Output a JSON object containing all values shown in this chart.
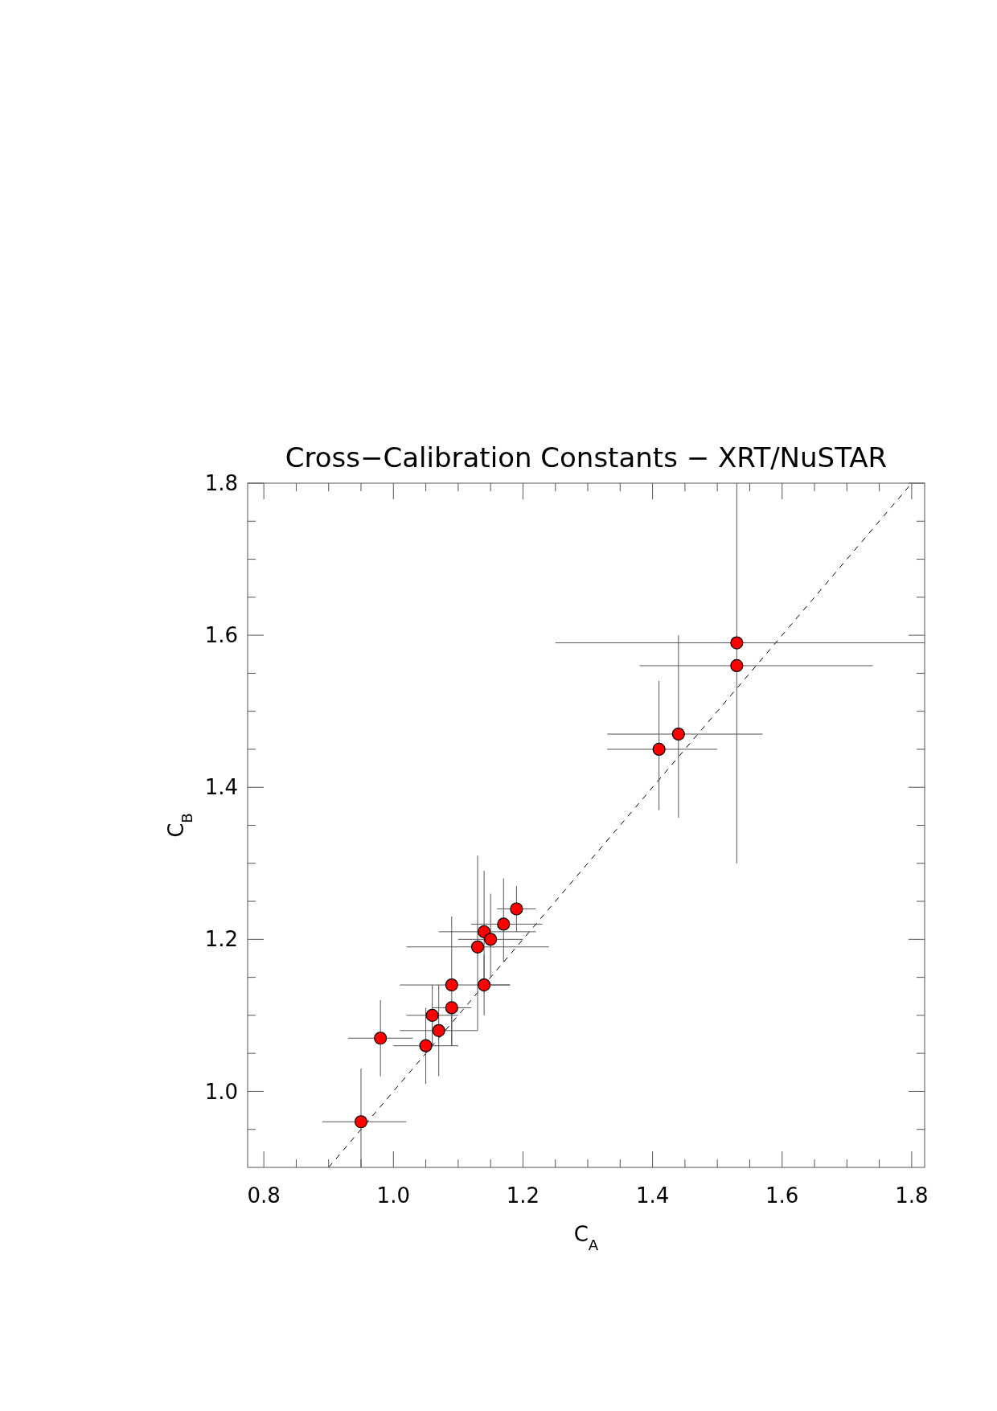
{
  "chart_data": {
    "type": "scatter",
    "title": "Cross−Calibration Constants − XRT/NuSTAR",
    "xlabel": "C$_{A}$",
    "ylabel": "C$_{B}$",
    "xlim": [
      0.775,
      1.82
    ],
    "ylim": [
      0.9,
      1.8
    ],
    "xticks": [
      {
        "value": 0.8,
        "label": "0.8"
      },
      {
        "value": 0.85,
        "label": null
      },
      {
        "value": 0.9,
        "label": null
      },
      {
        "value": 0.95,
        "label": null
      },
      {
        "value": 1,
        "label": "1.0"
      },
      {
        "value": 1.05,
        "label": null
      },
      {
        "value": 1.1,
        "label": null
      },
      {
        "value": 1.15,
        "label": null
      },
      {
        "value": 1.2,
        "label": "1.2"
      },
      {
        "value": 1.25,
        "label": null
      },
      {
        "value": 1.3,
        "label": null
      },
      {
        "value": 1.35,
        "label": null
      },
      {
        "value": 1.4,
        "label": "1.4"
      },
      {
        "value": 1.45,
        "label": null
      },
      {
        "value": 1.5,
        "label": null
      },
      {
        "value": 1.55,
        "label": null
      },
      {
        "value": 1.6,
        "label": "1.6"
      },
      {
        "value": 1.65,
        "label": null
      },
      {
        "value": 1.7,
        "label": null
      },
      {
        "value": 1.75,
        "label": null
      },
      {
        "value": 1.8,
        "label": "1.8"
      }
    ],
    "yticks": [
      {
        "value": 0.95,
        "label": null
      },
      {
        "value": 1,
        "label": "1.0"
      },
      {
        "value": 1.05,
        "label": null
      },
      {
        "value": 1.1,
        "label": null
      },
      {
        "value": 1.15,
        "label": null
      },
      {
        "value": 1.2,
        "label": "1.2"
      },
      {
        "value": 1.25,
        "label": null
      },
      {
        "value": 1.3,
        "label": null
      },
      {
        "value": 1.35,
        "label": null
      },
      {
        "value": 1.4,
        "label": "1.4"
      },
      {
        "value": 1.45,
        "label": null
      },
      {
        "value": 1.5,
        "label": null
      },
      {
        "value": 1.55,
        "label": null
      },
      {
        "value": 1.6,
        "label": "1.6"
      },
      {
        "value": 1.65,
        "label": null
      },
      {
        "value": 1.7,
        "label": null
      },
      {
        "value": 1.75,
        "label": null
      },
      {
        "value": 1.8,
        "label": "1.8"
      }
    ],
    "grid": false,
    "series": [
      {
        "type": "line",
        "color": "#000000",
        "line_style": "dashed",
        "x": [
          0.9,
          1.8
        ],
        "values": [
          0.9,
          1.8
        ]
      },
      {
        "type": "scatter",
        "color": "#ff0000",
        "marker": "circle",
        "x": [
          0.95,
          0.98,
          1.05,
          1.07,
          1.06,
          1.09,
          1.09,
          1.14,
          1.13,
          1.14,
          1.15,
          1.17,
          1.19,
          1.53,
          1.53,
          1.44,
          1.41
        ],
        "values": [
          0.96,
          1.07,
          1.06,
          1.08,
          1.1,
          1.11,
          1.14,
          1.14,
          1.19,
          1.21,
          1.2,
          1.22,
          1.24,
          1.59,
          1.56,
          1.47,
          1.45
        ],
        "xerrors": [
          [
            0.89,
            1.02
          ],
          [
            0.93,
            1.03
          ],
          [
            1,
            1.1
          ],
          [
            1.01,
            1.13
          ],
          [
            1.02,
            1.1
          ],
          [
            1.06,
            1.12
          ],
          [
            1.01,
            1.18
          ],
          [
            1.14,
            1.18
          ],
          [
            1.02,
            1.24
          ],
          [
            1.07,
            1.22
          ],
          [
            1.1,
            1.2
          ],
          [
            1.12,
            1.23
          ],
          [
            1.16,
            1.22
          ],
          [
            1.25,
            1.82
          ],
          [
            1.38,
            1.74
          ],
          [
            1.33,
            1.57
          ],
          [
            1.33,
            1.5
          ]
        ],
        "errors": [
          [
            0.9,
            1.03
          ],
          [
            1.02,
            1.12
          ],
          [
            1.01,
            1.11
          ],
          [
            1.02,
            1.14
          ],
          [
            1.06,
            1.14
          ],
          [
            1.06,
            1.11
          ],
          [
            1.06,
            1.23
          ],
          [
            1.1,
            1.18
          ],
          [
            1.08,
            1.31
          ],
          [
            1.13,
            1.29
          ],
          [
            1.15,
            1.26
          ],
          [
            1.17,
            1.28
          ],
          [
            1.21,
            1.27
          ],
          [
            1.3,
            1.8
          ],
          null,
          [
            1.36,
            1.6
          ],
          [
            1.37,
            1.54
          ]
        ]
      }
    ]
  }
}
